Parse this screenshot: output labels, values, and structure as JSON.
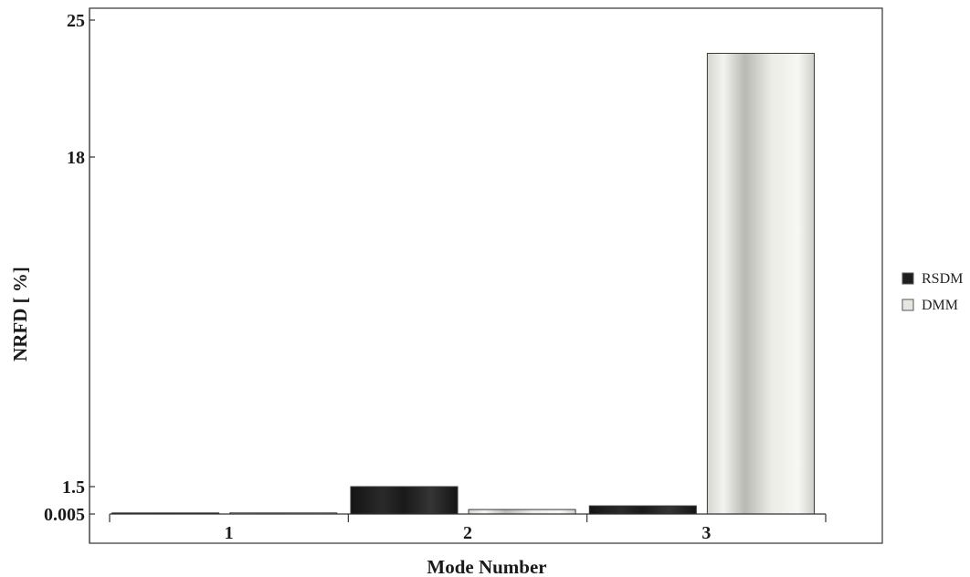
{
  "chart_data": {
    "type": "bar",
    "title": "",
    "xlabel": "Mode Number",
    "ylabel": "NRFD  [ %]",
    "categories": [
      "1",
      "2",
      "3"
    ],
    "series": [
      {
        "name": "RSDM",
        "values": [
          0.005,
          1.5,
          0.45
        ],
        "color": "#1e1e1e"
      },
      {
        "name": "DMM",
        "values": [
          0.05,
          0.25,
          23.3
        ],
        "color": "#e6e6e0"
      }
    ],
    "y_ticks": [
      0.005,
      1.5,
      18,
      25
    ],
    "y_tick_labels": [
      "0.005",
      "1.5",
      "18",
      "25"
    ],
    "ylim": [
      0.005,
      25
    ],
    "grid": false,
    "legend_position": "right"
  }
}
